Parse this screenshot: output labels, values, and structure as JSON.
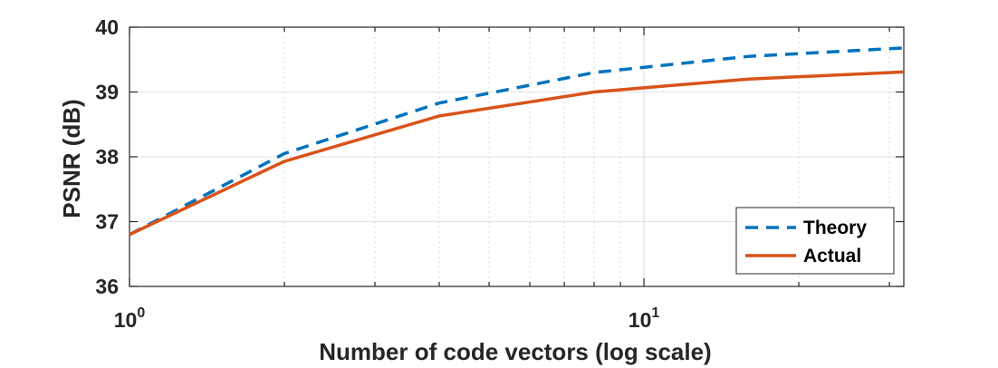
{
  "chart_data": {
    "type": "line",
    "xscale": "log",
    "xlim": [
      1,
      32
    ],
    "ylim": [
      36,
      40
    ],
    "xlabel": "Number of code vectors (log scale)",
    "ylabel": "PSNR (dB)",
    "grid": true,
    "legend_position": "bottom-right",
    "yticks": [
      "36",
      "37",
      "38",
      "39",
      "40"
    ],
    "xticks": [
      {
        "base": "10",
        "exp": "0",
        "value": 1
      },
      {
        "base": "10",
        "exp": "1",
        "value": 10
      }
    ],
    "x": [
      1,
      2,
      4,
      8,
      16,
      32
    ],
    "series": [
      {
        "name": "Theory",
        "style": "dashed",
        "color": "#0072BD",
        "values": [
          36.8,
          38.05,
          38.83,
          39.3,
          39.55,
          39.68
        ]
      },
      {
        "name": "Actual",
        "style": "solid",
        "color": "#D95319",
        "values": [
          36.8,
          37.93,
          38.63,
          39.0,
          39.2,
          39.31
        ]
      }
    ]
  }
}
